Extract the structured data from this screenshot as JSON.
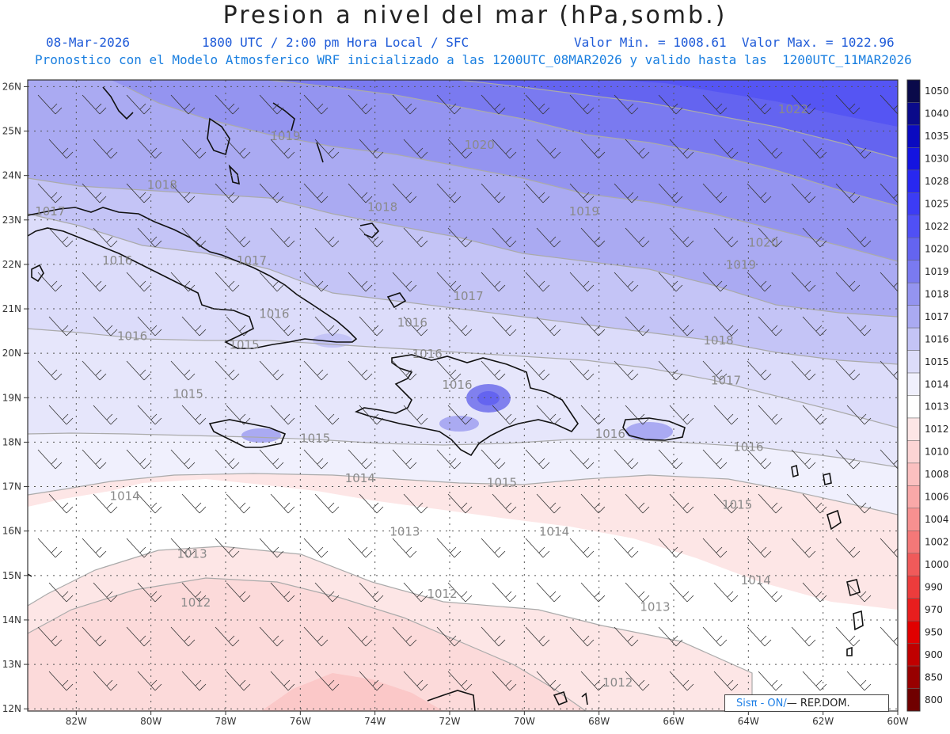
{
  "header": {
    "title": "Presion a nivel del mar (hPa,somb.)",
    "date": "08-Mar-2026",
    "valid_time": "1800 UTC / 2:00 pm Hora Local / SFC",
    "value_range": "Valor Min. = 1008.61  Valor Max. = 1022.96",
    "forecast_note": "Pronostico con el Modelo Atmosferico WRF inicializado a las 1200UTC_08MAR2026 y valido hasta las  1200UTC_11MAR2026"
  },
  "map": {
    "lon_labels": [
      "82W",
      "80W",
      "78W",
      "76W",
      "74W",
      "72W",
      "70W",
      "68W",
      "66W",
      "64W",
      "62W",
      "60W"
    ],
    "lat_labels": [
      "26N",
      "25N",
      "24N",
      "23N",
      "22N",
      "21N",
      "20N",
      "19N",
      "18N",
      "17N",
      "16N",
      "15N",
      "14N",
      "13N",
      "12N"
    ],
    "isobar_labels": [
      {
        "text": "1022",
        "lon": -62.8,
        "lat": 25.4
      },
      {
        "text": "1020",
        "lon": -71.2,
        "lat": 24.6
      },
      {
        "text": "1020",
        "lon": -63.6,
        "lat": 22.4
      },
      {
        "text": "1019",
        "lon": -76.4,
        "lat": 24.8
      },
      {
        "text": "1019",
        "lon": -68.4,
        "lat": 23.1
      },
      {
        "text": "1019",
        "lon": -64.2,
        "lat": 21.9
      },
      {
        "text": "1018",
        "lon": -79.7,
        "lat": 23.7
      },
      {
        "text": "1018",
        "lon": -73.8,
        "lat": 23.2
      },
      {
        "text": "1018",
        "lon": -64.8,
        "lat": 20.2
      },
      {
        "text": "1017",
        "lon": -82.7,
        "lat": 23.1
      },
      {
        "text": "1017",
        "lon": -77.3,
        "lat": 22.0
      },
      {
        "text": "1017",
        "lon": -71.5,
        "lat": 21.2
      },
      {
        "text": "1017",
        "lon": -64.6,
        "lat": 19.3
      },
      {
        "text": "1016",
        "lon": -80.9,
        "lat": 22.0
      },
      {
        "text": "1016",
        "lon": -80.5,
        "lat": 20.3
      },
      {
        "text": "1016",
        "lon": -76.7,
        "lat": 20.8
      },
      {
        "text": "1016",
        "lon": -73.0,
        "lat": 20.6
      },
      {
        "text": "1016",
        "lon": -72.6,
        "lat": 19.9
      },
      {
        "text": "1016",
        "lon": -71.8,
        "lat": 19.2
      },
      {
        "text": "1016",
        "lon": -67.7,
        "lat": 18.1
      },
      {
        "text": "1016",
        "lon": -64.0,
        "lat": 17.8
      },
      {
        "text": "1015",
        "lon": -77.5,
        "lat": 20.1
      },
      {
        "text": "1015",
        "lon": -79.0,
        "lat": 19.0
      },
      {
        "text": "1015",
        "lon": -75.6,
        "lat": 18.0
      },
      {
        "text": "1015",
        "lon": -70.6,
        "lat": 17.0
      },
      {
        "text": "1015",
        "lon": -64.3,
        "lat": 16.5
      },
      {
        "text": "1014",
        "lon": -74.4,
        "lat": 17.1
      },
      {
        "text": "1014",
        "lon": -80.7,
        "lat": 16.7
      },
      {
        "text": "1014",
        "lon": -69.2,
        "lat": 15.9
      },
      {
        "text": "1014",
        "lon": -63.8,
        "lat": 14.8
      },
      {
        "text": "1013",
        "lon": -73.2,
        "lat": 15.9
      },
      {
        "text": "1013",
        "lon": -78.9,
        "lat": 15.4
      },
      {
        "text": "1013",
        "lon": -66.5,
        "lat": 14.2
      },
      {
        "text": "1012",
        "lon": -78.8,
        "lat": 14.3
      },
      {
        "text": "1012",
        "lon": -72.2,
        "lat": 14.5
      },
      {
        "text": "1012",
        "lon": -67.5,
        "lat": 12.5
      }
    ]
  },
  "colorbar": {
    "levels": [
      "1050",
      "1040",
      "1035",
      "1030",
      "1028",
      "1025",
      "1022",
      "1020",
      "1019",
      "1018",
      "1017",
      "1016",
      "1015",
      "1014",
      "1013",
      "1012",
      "1010",
      "1008",
      "1006",
      "1004",
      "1002",
      "1000",
      "990",
      "970",
      "950",
      "900",
      "850",
      "800"
    ],
    "colors": [
      "#0a0a4a",
      "#0a0a8a",
      "#0a0ac0",
      "#1414e0",
      "#2828f0",
      "#3c3cf5",
      "#5050f5",
      "#6464f0",
      "#7a7af0",
      "#9494f0",
      "#aaaaf2",
      "#c4c4f6",
      "#dcdcfa",
      "#f0f0fd",
      "#ffffff",
      "#fde6e6",
      "#fcd4d4",
      "#fbc0c0",
      "#f9a8a8",
      "#f79090",
      "#f47878",
      "#f05a5a",
      "#ec3c3c",
      "#e81e1e",
      "#e00000",
      "#c00000",
      "#980000",
      "#700000"
    ]
  },
  "badge": {
    "part1": "Sis",
    "part2": "π - ON/",
    "part3": "—  REP.DOM."
  }
}
